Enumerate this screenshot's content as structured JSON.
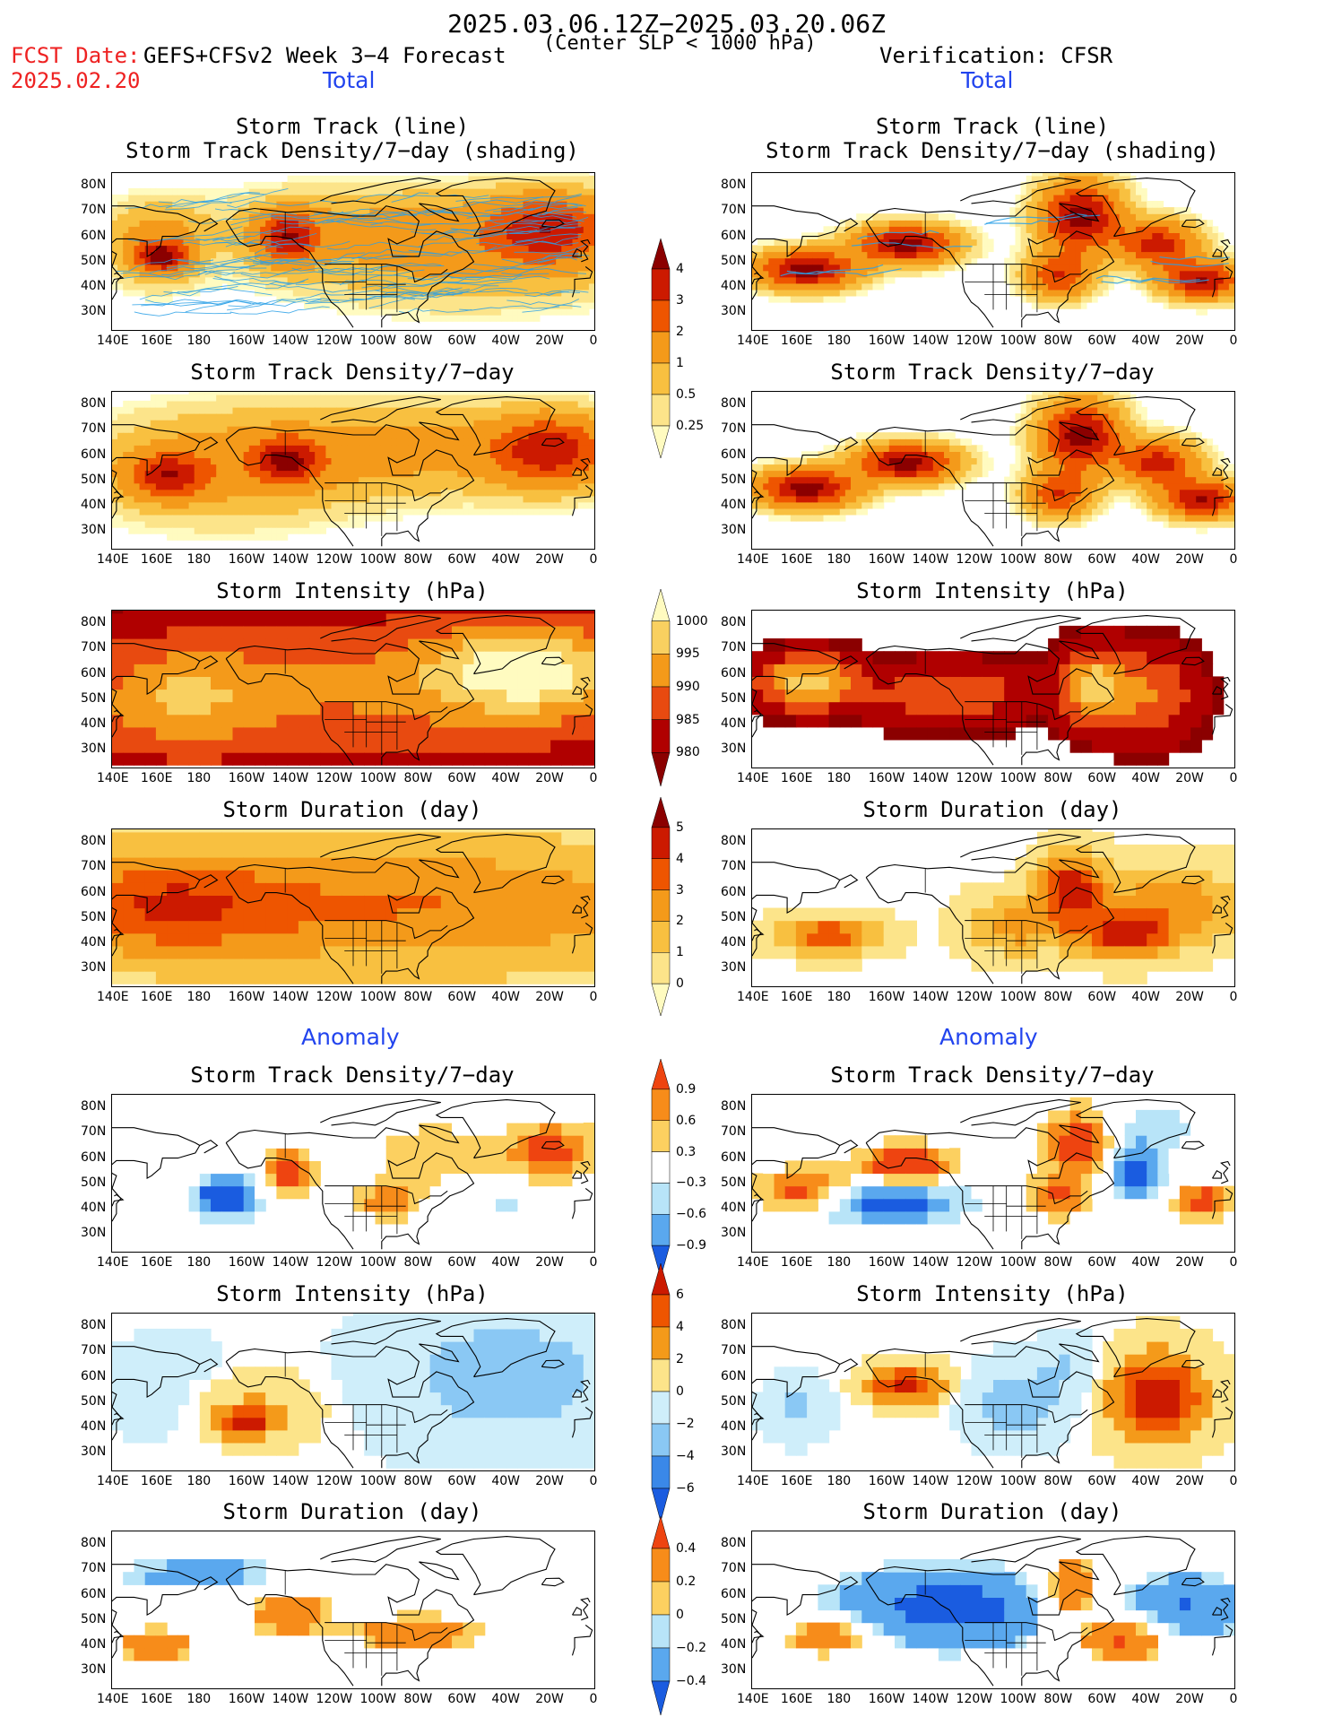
{
  "header": {
    "date_range": "2025.03.06.12Z−2025.03.20.06Z",
    "fcst_label": "FCST Date:",
    "fcst_date": "2025.02.20",
    "model_title": "GEFS+CFSv2 Week 3−4 Forecast",
    "criterion": "(Center SLP < 1000 hPa)",
    "verification": "Verification: CFSR",
    "total_label": "Total",
    "anomaly_label": "Anomaly"
  },
  "axes": {
    "lon_ticks": [
      "140E",
      "160E",
      "180",
      "160W",
      "140W",
      "120W",
      "100W",
      "80W",
      "60W",
      "40W",
      "20W",
      "0"
    ],
    "lat_ticks": [
      "80N",
      "70N",
      "60N",
      "50N",
      "40N",
      "30N"
    ]
  },
  "panel_titles": {
    "p1_line1": "Storm Track (line)",
    "p1_line2": "Storm Track Density/7−day (shading)",
    "density": "Storm Track Density/7−day",
    "intensity": "Storm Intensity (hPa)",
    "duration": "Storm Duration (day)"
  },
  "colorbars": {
    "density_total": {
      "labels": [
        "4",
        "3",
        "2",
        "1",
        "0.5",
        "0.25"
      ],
      "colors": [
        "#8b0000",
        "#cc1a00",
        "#ee5500",
        "#f49a1a",
        "#f8c040",
        "#fce48a",
        "#fffbc0"
      ]
    },
    "intensity_total": {
      "labels": [
        "1000",
        "995",
        "990",
        "985",
        "980"
      ],
      "colors": [
        "#fffbc0",
        "#f9d060",
        "#f49a1a",
        "#e84a10",
        "#b00000",
        "#8b0000"
      ]
    },
    "duration_total": {
      "labels": [
        "5",
        "4",
        "3",
        "2",
        "1",
        "0"
      ],
      "colors": [
        "#8b0000",
        "#cc1a00",
        "#ee5500",
        "#f49a1a",
        "#f8c040",
        "#fce48a",
        "#fffbc0"
      ]
    },
    "density_anom": {
      "labels": [
        "0.9",
        "0.6",
        "0.3",
        "−0.3",
        "−0.6",
        "−0.9"
      ],
      "colors": [
        "#ee4410",
        "#f78c1a",
        "#fcd060",
        "#ffffff",
        "#b8e4f8",
        "#5aa8ee",
        "#1a5ce0"
      ]
    },
    "intensity_anom": {
      "labels": [
        "6",
        "4",
        "2",
        "0",
        "−2",
        "−4",
        "−6"
      ],
      "colors": [
        "#cc1a00",
        "#ee5500",
        "#f49a1a",
        "#fce48a",
        "#cfeefa",
        "#8ac8f4",
        "#3a88e8",
        "#1a5ce0"
      ]
    },
    "duration_anom": {
      "labels": [
        "0.4",
        "0.2",
        "0",
        "−0.2",
        "−0.4"
      ],
      "colors": [
        "#ee4410",
        "#f78c1a",
        "#fcd060",
        "#b8e4f8",
        "#5aa8ee",
        "#1a5ce0"
      ]
    }
  },
  "chart_data": [
    {
      "type": "heatmap",
      "title": "Storm Track (line) / Storm Track Density/7−day (shading)",
      "column": "GEFS+CFSv2 Week 3−4 Forecast",
      "section": "Total",
      "units": "tracks/7-day",
      "blobs": [
        [
          160,
          57,
          14,
          10,
          1.5
        ],
        [
          163,
          52,
          8,
          4,
          3.5
        ],
        [
          -140,
          60,
          10,
          7,
          3.4
        ],
        [
          -20,
          63,
          18,
          9,
          3.0
        ],
        [
          -80,
          65,
          60,
          10,
          1.0
        ],
        [
          -60,
          50,
          55,
          12,
          1.0
        ]
      ]
    },
    {
      "type": "heatmap",
      "title": "Storm Track (line) / Storm Track Density/7−day (shading)",
      "column": "Verification: CFSR",
      "section": "Total",
      "units": "tracks/7-day",
      "blobs": [
        [
          165,
          47,
          15,
          5,
          4.5
        ],
        [
          -150,
          57,
          15,
          5,
          4.5
        ],
        [
          -70,
          68,
          12,
          9,
          4.6
        ],
        [
          -35,
          57,
          12,
          6,
          3.5
        ],
        [
          -15,
          43,
          12,
          5,
          4.0
        ],
        [
          -80,
          45,
          10,
          6,
          3.0
        ]
      ]
    },
    {
      "type": "heatmap",
      "title": "Storm Track Density/7−day",
      "column": "GEFS+CFSv2 Week 3−4 Forecast",
      "section": "Total",
      "units": "tracks/7-day",
      "blobs": [
        [
          165,
          52,
          12,
          6,
          3.0
        ],
        [
          -140,
          58,
          10,
          6,
          3.2
        ],
        [
          -20,
          62,
          18,
          9,
          3.2
        ],
        [
          -80,
          62,
          60,
          12,
          1.2
        ],
        [
          -170,
          55,
          40,
          14,
          1.2
        ]
      ]
    },
    {
      "type": "heatmap",
      "title": "Storm Track Density/7−day",
      "column": "Verification: CFSR",
      "section": "Total",
      "units": "tracks/7-day",
      "blobs": [
        [
          165,
          47,
          15,
          5,
          4.5
        ],
        [
          -150,
          57,
          15,
          5,
          4.5
        ],
        [
          -70,
          68,
          12,
          9,
          4.6
        ],
        [
          -35,
          57,
          12,
          6,
          3.5
        ],
        [
          -15,
          43,
          12,
          5,
          4.0
        ],
        [
          -80,
          45,
          10,
          6,
          3.0
        ]
      ]
    },
    {
      "type": "heatmap",
      "title": "Storm Intensity (hPa)",
      "column": "GEFS+CFSv2 Week 3−4 Forecast",
      "section": "Total",
      "units": "hPa",
      "blobs": [
        [
          -30,
          62,
          30,
          12,
          3.2
        ],
        [
          -80,
          55,
          90,
          20,
          2.2
        ],
        [
          170,
          50,
          30,
          15,
          2.2
        ]
      ]
    },
    {
      "type": "heatmap",
      "title": "Storm Intensity (hPa)",
      "column": "Verification: CFSR",
      "section": "Total",
      "units": "hPa",
      "blobs": [
        [
          165,
          57,
          15,
          7,
          3.5
        ],
        [
          -65,
          55,
          10,
          10,
          3.2
        ],
        [
          -40,
          52,
          15,
          12,
          2.0
        ],
        [
          -130,
          52,
          25,
          8,
          1.8
        ]
      ]
    },
    {
      "type": "heatmap",
      "title": "Storm Duration (day)",
      "column": "GEFS+CFSv2 Week 3−4 Forecast",
      "section": "Total",
      "units": "day",
      "blobs": [
        [
          -80,
          55,
          100,
          20,
          3.0
        ],
        [
          160,
          55,
          40,
          15,
          2.8
        ]
      ]
    },
    {
      "type": "heatmap",
      "title": "Storm Duration (day)",
      "column": "Verification: CFSR",
      "section": "Total",
      "units": "day",
      "blobs": [
        [
          -75,
          62,
          10,
          10,
          4.5
        ],
        [
          175,
          43,
          15,
          5,
          4.0
        ],
        [
          -50,
          42,
          15,
          6,
          4.0
        ],
        [
          -100,
          47,
          15,
          8,
          2.5
        ],
        [
          -30,
          55,
          25,
          10,
          2.8
        ]
      ]
    },
    {
      "type": "heatmap",
      "title": "Storm Track Density/7−day",
      "column": "GEFS+CFSv2 Week 3−4 Forecast",
      "section": "Anomaly",
      "units": "tracks/7-day",
      "blobs": [
        [
          -168,
          45,
          10,
          6,
          -1.5
        ],
        [
          -140,
          55,
          8,
          7,
          1.2
        ],
        [
          -20,
          63,
          15,
          8,
          1.1
        ],
        [
          -95,
          43,
          10,
          5,
          0.9
        ],
        [
          -75,
          62,
          20,
          10,
          0.5
        ],
        [
          -40,
          42,
          10,
          5,
          -0.4
        ]
      ]
    },
    {
      "type": "heatmap",
      "title": "Storm Track Density/7−day",
      "column": "Verification: CFSR",
      "section": "Anomaly",
      "units": "tracks/7-day",
      "blobs": [
        [
          165,
          47,
          15,
          6,
          1.4
        ],
        [
          -150,
          57,
          15,
          6,
          1.4
        ],
        [
          -70,
          67,
          12,
          9,
          1.5
        ],
        [
          -160,
          43,
          25,
          6,
          -1.4
        ],
        [
          -15,
          43,
          10,
          5,
          1.2
        ],
        [
          -80,
          45,
          10,
          6,
          1.0
        ],
        [
          -45,
          55,
          10,
          8,
          -1.2
        ],
        [
          -45,
          72,
          25,
          6,
          -0.5
        ]
      ]
    },
    {
      "type": "heatmap",
      "title": "Storm Intensity (hPa)",
      "column": "GEFS+CFSv2 Week 3−4 Forecast",
      "section": "Anomaly",
      "units": "hPa",
      "blobs": [
        [
          -40,
          60,
          40,
          20,
          -3.0
        ],
        [
          -160,
          42,
          8,
          4,
          7.0
        ],
        [
          -155,
          48,
          20,
          10,
          2.5
        ],
        [
          170,
          55,
          30,
          15,
          -1.0
        ]
      ]
    },
    {
      "type": "heatmap",
      "title": "Storm Intensity (hPa)",
      "column": "Verification: CFSR",
      "section": "Anomaly",
      "units": "hPa",
      "blobs": [
        [
          -35,
          52,
          15,
          12,
          8.0
        ],
        [
          -150,
          57,
          12,
          5,
          7.0
        ],
        [
          -100,
          50,
          15,
          10,
          -3.5
        ],
        [
          160,
          47,
          10,
          8,
          -2.5
        ],
        [
          -75,
          65,
          10,
          8,
          -2.0
        ]
      ]
    },
    {
      "type": "heatmap",
      "title": "Storm Duration (day)",
      "column": "GEFS+CFSv2 Week 3−4 Forecast",
      "section": "Anomaly",
      "units": "day",
      "blobs": [
        [
          -80,
          45,
          25,
          6,
          0.3
        ],
        [
          -140,
          55,
          15,
          10,
          0.3
        ],
        [
          160,
          40,
          15,
          6,
          0.3
        ],
        [
          -170,
          68,
          40,
          5,
          -0.3
        ]
      ]
    },
    {
      "type": "heatmap",
      "title": "Storm Duration (day)",
      "column": "Verification: CFSR",
      "section": "Anomaly",
      "units": "day",
      "blobs": [
        [
          -75,
          62,
          10,
          10,
          0.5
        ],
        [
          175,
          43,
          15,
          5,
          0.5
        ],
        [
          -50,
          42,
          15,
          6,
          0.5
        ],
        [
          -130,
          55,
          40,
          12,
          -0.5
        ],
        [
          -20,
          55,
          20,
          10,
          -0.4
        ]
      ]
    }
  ]
}
